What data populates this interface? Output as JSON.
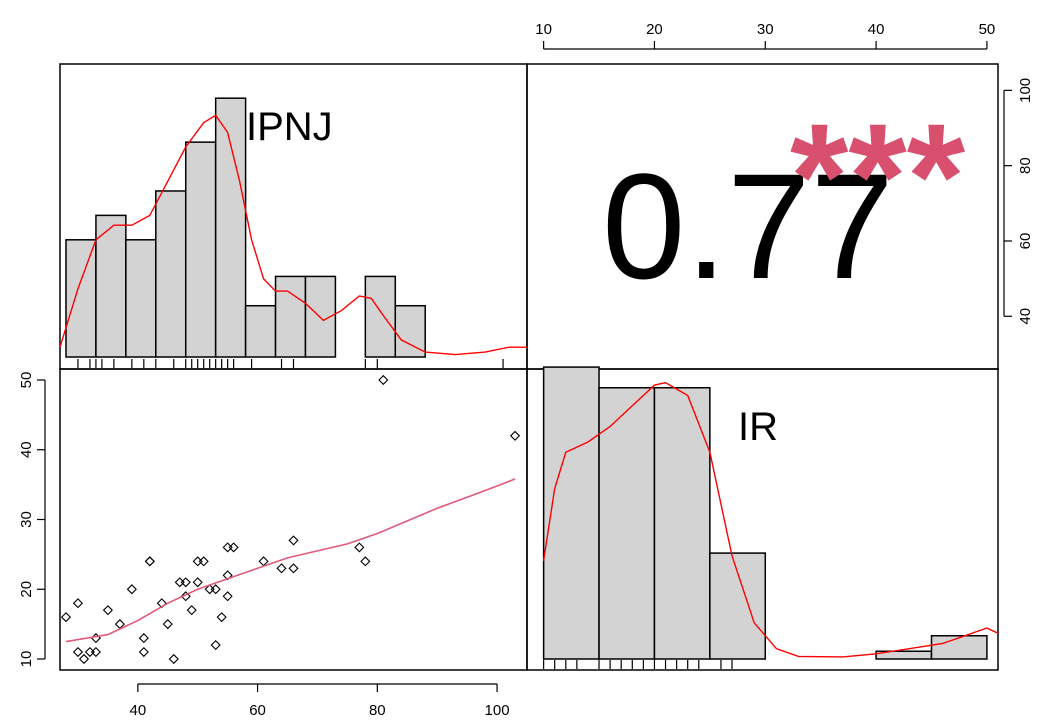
{
  "chart_data": {
    "type": "scatter-matrix",
    "variables": [
      "IPNJ",
      "IR"
    ],
    "correlation": {
      "value": "0.77",
      "stars": "***"
    },
    "axes": {
      "ipnj": {
        "range": [
          27,
          105
        ],
        "ticks": [
          40,
          60,
          80,
          100
        ],
        "tick_labels": [
          "40",
          "60",
          "80",
          "100"
        ]
      },
      "ir_bottom": {
        "range": [
          10,
          50
        ],
        "ticks": [
          10,
          20,
          30,
          40,
          50
        ],
        "tick_labels": [
          "10",
          "20",
          "30",
          "40",
          "50"
        ]
      },
      "ir_top": {
        "range": [
          8.5,
          51
        ],
        "ticks": [
          10,
          20,
          30,
          40,
          50
        ],
        "tick_labels": [
          "10",
          "20",
          "30",
          "40",
          "50"
        ]
      },
      "ipnj_right": {
        "range": [
          26,
          107
        ],
        "ticks": [
          40,
          60,
          80,
          100
        ],
        "tick_labels": [
          "40",
          "60",
          "80",
          "100"
        ]
      }
    },
    "ipnj_histogram": {
      "bin_edges": [
        28,
        33,
        38,
        43,
        48,
        53,
        58,
        63,
        68,
        73,
        78,
        83,
        88,
        93,
        98,
        103
      ],
      "densities": [
        0.024,
        0.029,
        0.024,
        0.034,
        0.044,
        0.053,
        0.0105,
        0.0165,
        0.0165,
        0,
        0.0165,
        0.0105,
        0,
        0,
        0,
        0.002
      ],
      "density_curve": [
        [
          27,
          0.002
        ],
        [
          30,
          0.014
        ],
        [
          33,
          0.024
        ],
        [
          36,
          0.027
        ],
        [
          39,
          0.027
        ],
        [
          42,
          0.029
        ],
        [
          45,
          0.036
        ],
        [
          48,
          0.043
        ],
        [
          51,
          0.048
        ],
        [
          53,
          0.0495
        ],
        [
          55,
          0.046
        ],
        [
          57,
          0.036
        ],
        [
          59,
          0.024
        ],
        [
          61,
          0.016
        ],
        [
          63,
          0.0135
        ],
        [
          65,
          0.0135
        ],
        [
          68,
          0.011
        ],
        [
          71,
          0.0075
        ],
        [
          74,
          0.0095
        ],
        [
          77,
          0.0125
        ],
        [
          79,
          0.012
        ],
        [
          81,
          0.0085
        ],
        [
          84,
          0.0035
        ],
        [
          88,
          0.001
        ],
        [
          93,
          0.0005
        ],
        [
          98,
          0.001
        ],
        [
          102,
          0.002
        ],
        [
          105,
          0.002
        ]
      ],
      "ymax": 0.06
    },
    "ir_histogram": {
      "bin_edges": [
        10,
        15,
        20,
        25,
        30,
        35,
        40,
        45,
        50
      ],
      "densities": [
        0.0565,
        0.0525,
        0.0525,
        0.0205,
        0,
        0,
        0.0015,
        0.0045
      ],
      "density_curve": [
        [
          10,
          0.019
        ],
        [
          11,
          0.033
        ],
        [
          12,
          0.04
        ],
        [
          14,
          0.042
        ],
        [
          16,
          0.045
        ],
        [
          18,
          0.049
        ],
        [
          20,
          0.053
        ],
        [
          21,
          0.0535
        ],
        [
          23,
          0.051
        ],
        [
          25,
          0.04
        ],
        [
          27,
          0.02
        ],
        [
          29,
          0.007
        ],
        [
          31,
          0.002
        ],
        [
          33,
          0.0005
        ],
        [
          37,
          0.0004
        ],
        [
          40,
          0.001
        ],
        [
          43,
          0.002
        ],
        [
          46,
          0.003
        ],
        [
          48,
          0.0045
        ],
        [
          50,
          0.006
        ],
        [
          51,
          0.005
        ]
      ],
      "ymax": 0.06
    },
    "rug": {
      "ipnj": [
        30,
        32,
        33,
        34,
        36,
        39,
        41,
        43,
        46,
        48,
        49,
        50,
        51,
        52,
        53,
        54,
        55,
        56,
        59,
        64,
        66,
        78,
        80,
        101
      ],
      "ir": [
        10,
        11,
        12,
        13,
        15,
        16,
        17,
        18,
        19,
        20,
        21,
        22,
        23,
        24,
        26,
        27
      ]
    },
    "scatter": {
      "x": [
        28,
        30,
        30,
        31,
        32,
        33,
        33,
        35,
        37,
        39,
        41,
        41,
        42,
        42,
        44,
        45,
        46,
        47,
        48,
        48,
        49,
        50,
        50,
        51,
        52,
        53,
        53,
        54,
        55,
        55,
        55,
        56,
        61,
        64,
        66,
        66,
        77,
        78,
        81,
        103
      ],
      "y": [
        16,
        18,
        11,
        10,
        11,
        13,
        11,
        17,
        15,
        20,
        11,
        13,
        24,
        24,
        18,
        15,
        10,
        21,
        21,
        19,
        17,
        24,
        21,
        24,
        20,
        20,
        12,
        16,
        19,
        22,
        26,
        26,
        24,
        23,
        23,
        27,
        26,
        24,
        50,
        42
      ],
      "smooth": [
        [
          28,
          12.5
        ],
        [
          35,
          13.5
        ],
        [
          40,
          15.5
        ],
        [
          45,
          18
        ],
        [
          50,
          20
        ],
        [
          55,
          21.5
        ],
        [
          60,
          23
        ],
        [
          65,
          24.5
        ],
        [
          70,
          25.5
        ],
        [
          75,
          26.5
        ],
        [
          80,
          28
        ],
        [
          85,
          29.8
        ],
        [
          90,
          31.6
        ],
        [
          95,
          33.2
        ],
        [
          100,
          34.8
        ],
        [
          103,
          35.8
        ]
      ]
    }
  }
}
